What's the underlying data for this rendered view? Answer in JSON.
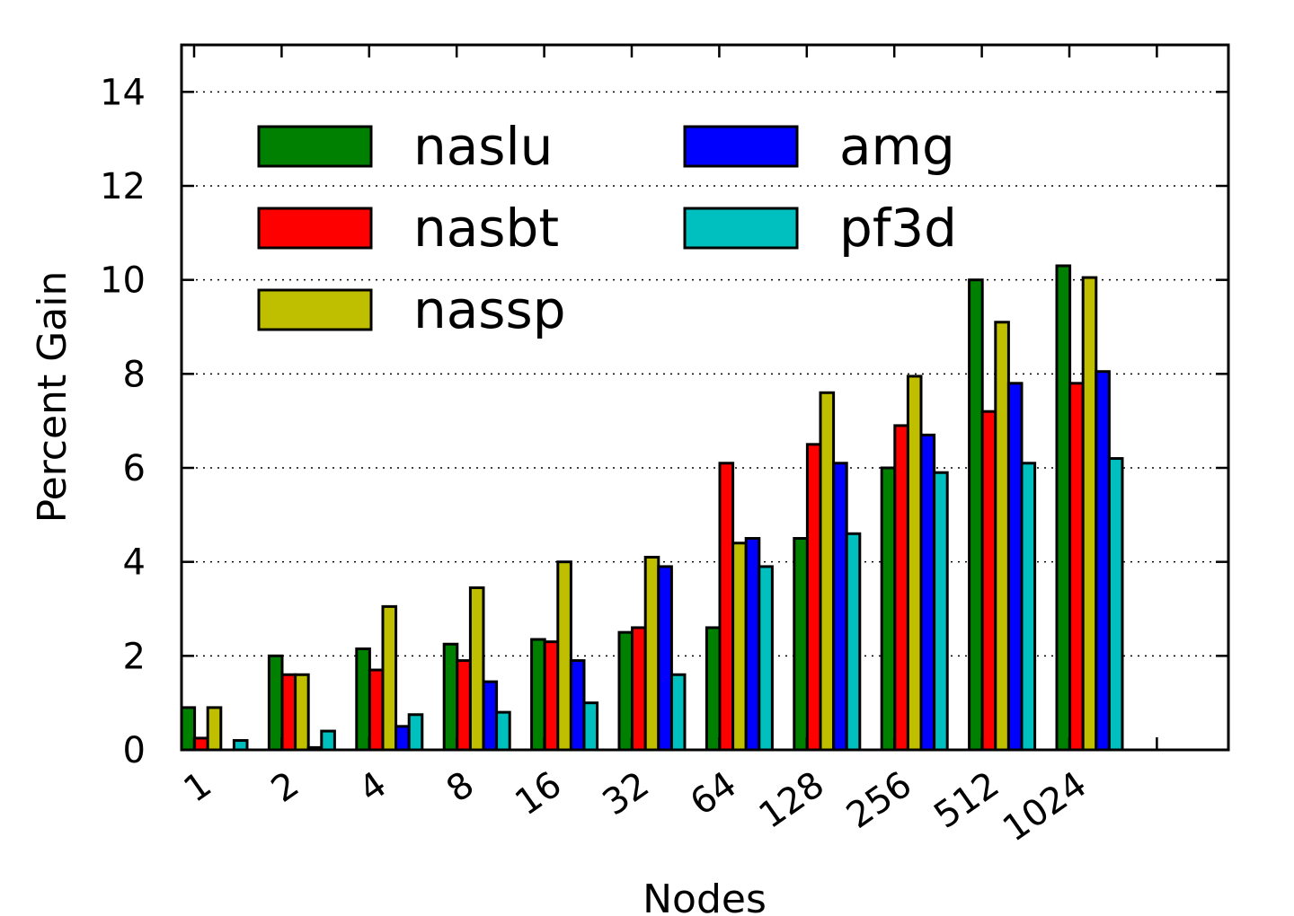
{
  "chart_data": {
    "type": "bar",
    "xlabel": "Nodes",
    "ylabel": "Percent Gain",
    "ylim": [
      0,
      15
    ],
    "yticks": [
      0,
      2,
      4,
      6,
      8,
      10,
      12,
      14
    ],
    "grid": "y-dotted",
    "legend_position": "top-left",
    "legend_columns": 2,
    "categories": [
      "1",
      "2",
      "4",
      "8",
      "16",
      "32",
      "64",
      "128",
      "256",
      "512",
      "1024"
    ],
    "series": [
      {
        "name": "naslu",
        "color": "#008000",
        "values": [
          0.9,
          2.0,
          2.15,
          2.25,
          2.35,
          2.5,
          2.6,
          4.5,
          6.0,
          10.0,
          10.3
        ]
      },
      {
        "name": "nasbt",
        "color": "#ff0000",
        "values": [
          0.25,
          1.6,
          1.7,
          1.9,
          2.3,
          2.6,
          6.1,
          6.5,
          6.9,
          7.2,
          7.8
        ]
      },
      {
        "name": "nassp",
        "color": "#bfbf00",
        "values": [
          0.9,
          1.6,
          3.05,
          3.45,
          4.0,
          4.1,
          4.4,
          7.6,
          7.95,
          9.1,
          10.05
        ]
      },
      {
        "name": "amg",
        "color": "#0000ff",
        "values": [
          0.0,
          0.05,
          0.5,
          1.45,
          1.9,
          3.9,
          4.5,
          6.1,
          6.7,
          7.8,
          8.05
        ]
      },
      {
        "name": "pf3d",
        "color": "#00bfbf",
        "values": [
          0.2,
          0.4,
          0.75,
          0.8,
          1.0,
          1.6,
          3.9,
          4.6,
          5.9,
          6.1,
          6.2
        ]
      }
    ]
  }
}
